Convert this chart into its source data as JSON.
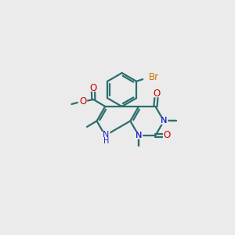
{
  "background_color": "#EBEBEB",
  "bond_color": "#2d6e6e",
  "bond_width": 1.6,
  "atom_colors": {
    "N": "#2222CC",
    "O": "#CC0000",
    "Br": "#CC7700",
    "C": "#2d6e6e"
  },
  "figsize": [
    3.0,
    3.0
  ],
  "dpi": 100,
  "ring_side": 0.72
}
